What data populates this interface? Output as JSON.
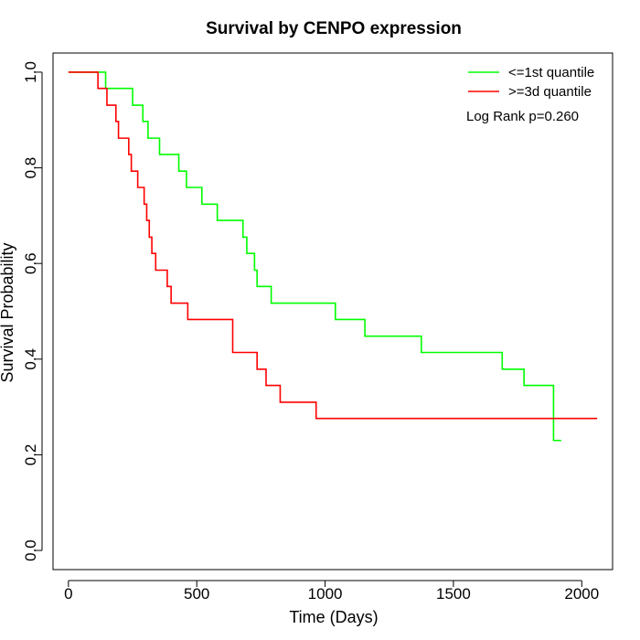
{
  "chart_data": {
    "type": "line",
    "title": "Survival by CENPO expression",
    "xlabel": "Time (Days)",
    "ylabel": "Survival Probability",
    "xlim": [
      -60,
      2120
    ],
    "ylim": [
      -0.04,
      1.04
    ],
    "x_ticks": [
      0,
      500,
      1000,
      1500,
      2000
    ],
    "y_ticks": [
      0.0,
      0.2,
      0.4,
      0.6,
      0.8,
      1.0
    ],
    "x_tick_labels": [
      "0",
      "500",
      "1000",
      "1500",
      "2000"
    ],
    "y_tick_labels": [
      "0.0",
      "0.2",
      "0.4",
      "0.6",
      "0.8",
      "1.0"
    ],
    "grid": false,
    "legend_position": "top-right",
    "annotation": "Log Rank p=0.260",
    "series": [
      {
        "name": "<=1st quantile",
        "color": "#00ff00",
        "steps": [
          [
            0,
            1.0
          ],
          [
            145,
            0.966
          ],
          [
            250,
            0.931
          ],
          [
            290,
            0.897
          ],
          [
            310,
            0.862
          ],
          [
            355,
            0.828
          ],
          [
            430,
            0.793
          ],
          [
            460,
            0.759
          ],
          [
            520,
            0.724
          ],
          [
            580,
            0.69
          ],
          [
            680,
            0.655
          ],
          [
            695,
            0.621
          ],
          [
            725,
            0.586
          ],
          [
            735,
            0.552
          ],
          [
            790,
            0.517
          ],
          [
            1040,
            0.483
          ],
          [
            1155,
            0.448
          ],
          [
            1375,
            0.414
          ],
          [
            1690,
            0.379
          ],
          [
            1775,
            0.345
          ],
          [
            1890,
            0.23
          ],
          [
            1920,
            0.23
          ]
        ]
      },
      {
        "name": ">=3d quantile",
        "color": "#ff0000",
        "steps": [
          [
            0,
            1.0
          ],
          [
            115,
            0.966
          ],
          [
            150,
            0.931
          ],
          [
            185,
            0.897
          ],
          [
            195,
            0.862
          ],
          [
            235,
            0.828
          ],
          [
            245,
            0.793
          ],
          [
            270,
            0.759
          ],
          [
            295,
            0.724
          ],
          [
            305,
            0.69
          ],
          [
            315,
            0.655
          ],
          [
            325,
            0.621
          ],
          [
            340,
            0.586
          ],
          [
            385,
            0.552
          ],
          [
            400,
            0.517
          ],
          [
            465,
            0.483
          ],
          [
            640,
            0.414
          ],
          [
            735,
            0.379
          ],
          [
            770,
            0.345
          ],
          [
            825,
            0.31
          ],
          [
            965,
            0.276
          ],
          [
            2060,
            0.276
          ]
        ]
      }
    ]
  }
}
